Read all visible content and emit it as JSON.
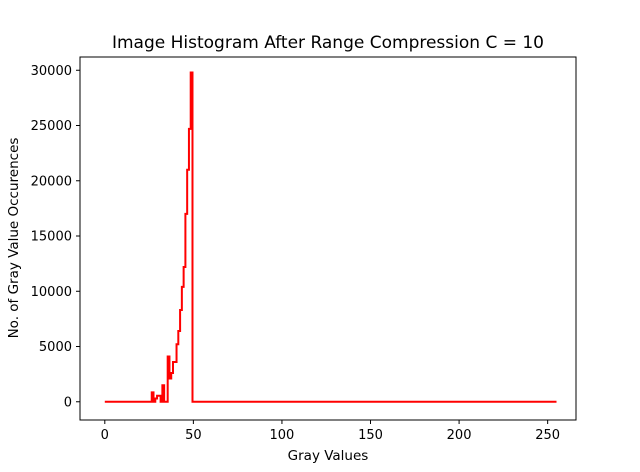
{
  "chart_data": {
    "type": "line",
    "drawstyle": "steps",
    "title": "Image Histogram After Range Compression C = 10",
    "xlabel": "Gray Values",
    "ylabel": "No. of Gray Value Occurences",
    "xlim": [
      -14,
      266
    ],
    "ylim": [
      -1650,
      31200
    ],
    "xticks": [
      0,
      50,
      100,
      150,
      200,
      250
    ],
    "yticks": [
      0,
      5000,
      10000,
      15000,
      20000,
      25000,
      30000
    ],
    "grid": false,
    "legend": "none",
    "series": [
      {
        "color": "#ff0000",
        "x": [
          0,
          26,
          27,
          28,
          29,
          30,
          31,
          32,
          33,
          34,
          35,
          36,
          37,
          38,
          39,
          40,
          41,
          42,
          43,
          44,
          45,
          46,
          47,
          48,
          49,
          50,
          51,
          255
        ],
        "y": [
          0,
          0,
          850,
          0,
          300,
          550,
          550,
          0,
          1500,
          0,
          0,
          4100,
          2100,
          2600,
          3600,
          3600,
          5200,
          6400,
          8300,
          10400,
          12200,
          17000,
          21000,
          24700,
          29800,
          0,
          0,
          0
        ]
      }
    ]
  }
}
